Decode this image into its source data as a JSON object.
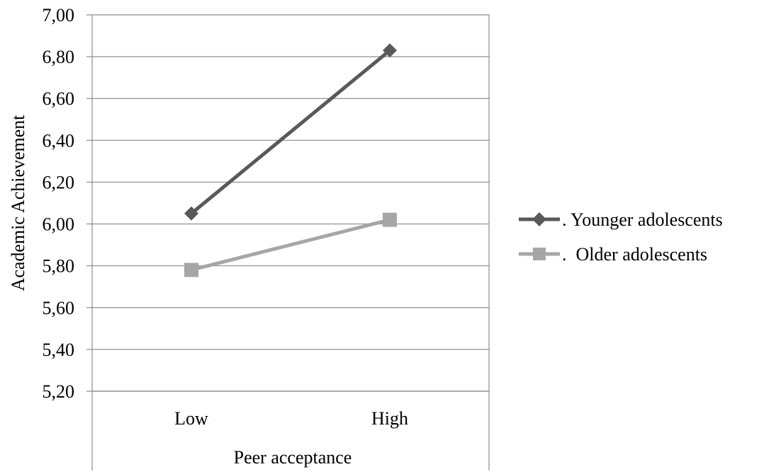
{
  "chart_data": {
    "type": "line",
    "title": "",
    "xlabel": "Peer acceptance",
    "ylabel": "Academic Achievement",
    "categories": [
      "Low",
      "High"
    ],
    "ylim": [
      5.2,
      7.0
    ],
    "yticks": [
      "5,20",
      "5,40",
      "5,60",
      "5,80",
      "6,00",
      "6,20",
      "6,40",
      "6,60",
      "6,80",
      "7,00"
    ],
    "grid": true,
    "legend_position": "right",
    "series": [
      {
        "name": ". Younger adolescents",
        "values": [
          6.05,
          6.83
        ],
        "marker": "diamond",
        "color": "#595959"
      },
      {
        "name": ".  Older adolescents",
        "values": [
          5.78,
          6.02
        ],
        "marker": "square",
        "color": "#a6a6a6"
      }
    ]
  }
}
